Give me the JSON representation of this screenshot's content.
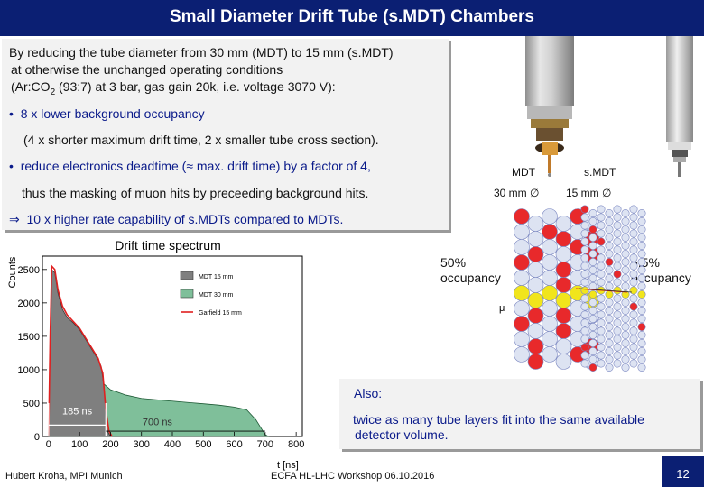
{
  "header": {
    "title": "Small Diameter Drift Tube (s.MDT) Chambers"
  },
  "intro": {
    "line1": "By reducing the tube diameter from 30 mm (MDT) to 15 mm (s.MDT)",
    "line2": "at otherwise the unchanged operating conditions",
    "line3_pre": "(Ar:CO",
    "line3_sub": "2",
    "line3_post": " (93:7) at 3 bar, gas gain 20k, i.e. voltage 3070 V):"
  },
  "bullets": [
    {
      "symbol": "•",
      "text": "8 x lower background occupancy",
      "detail": "(4 x shorter maximum drift time, 2 x smaller tube cross section)."
    },
    {
      "symbol": "•",
      "text": "reduce electronics deadtime (≈ max. drift time) by a factor of 4,",
      "detail": "thus the masking of muon hits by preceeding background hits."
    }
  ],
  "conclusion": {
    "symbol": "⇒",
    "text": "10 x higher rate capability of s.MDTs compared to MDTs."
  },
  "diagram": {
    "left_title": "MDT",
    "left_size": "30 mm ∅",
    "right_title": "s.MDT",
    "right_size": "15 mm ∅",
    "left_occupancy": "50%",
    "right_occupancy": "6.5%",
    "occupancy_word": "occupancy",
    "muon_label": "μ"
  },
  "chart_data": {
    "type": "area",
    "title": "Drift time spectrum",
    "xlabel": "t [ns]",
    "ylabel": "Counts",
    "xlim": [
      -20,
      820
    ],
    "ylim": [
      0,
      2700
    ],
    "x_ticks": [
      0,
      100,
      200,
      300,
      400,
      500,
      600,
      700,
      800
    ],
    "y_ticks": [
      0,
      500,
      1000,
      1500,
      2000,
      2500
    ],
    "legend_position": "top-right",
    "series": [
      {
        "name": "MDT 15 mm",
        "color": "#7f7f7f",
        "x": [
          0,
          5,
          10,
          20,
          30,
          45,
          60,
          80,
          100,
          120,
          140,
          160,
          170,
          180,
          185,
          190,
          200
        ],
        "y": [
          0,
          1400,
          2500,
          2450,
          2150,
          1900,
          1780,
          1700,
          1600,
          1450,
          1300,
          1150,
          1050,
          700,
          300,
          80,
          0
        ]
      },
      {
        "name": "MDT 30 mm",
        "color": "#7fbf9a",
        "x": [
          0,
          5,
          10,
          20,
          30,
          45,
          60,
          80,
          100,
          120,
          140,
          160,
          180,
          200,
          250,
          300,
          350,
          400,
          450,
          500,
          550,
          600,
          640,
          670,
          690,
          700,
          710
        ],
        "y": [
          0,
          1300,
          2350,
          2300,
          2000,
          1750,
          1600,
          1450,
          1300,
          1150,
          1000,
          880,
          780,
          700,
          620,
          570,
          550,
          530,
          510,
          490,
          470,
          440,
          400,
          250,
          100,
          30,
          0
        ]
      },
      {
        "name": "Garfield 15 mm",
        "color": "#e02020",
        "x": [
          0,
          5,
          10,
          20,
          30,
          45,
          60,
          80,
          100,
          120,
          140,
          160,
          175,
          185,
          195,
          205
        ],
        "y": [
          0,
          1500,
          2550,
          2500,
          2200,
          1950,
          1820,
          1720,
          1620,
          1470,
          1320,
          1170,
          950,
          400,
          80,
          0
        ]
      }
    ],
    "annotations": [
      "185 ns",
      "700 ns"
    ]
  },
  "also": {
    "heading": "Also:",
    "line1": "twice as many tube layers fit into the same available",
    "line2": "detector volume."
  },
  "footer": {
    "author": "Hubert Kroha, MPI Munich",
    "event": "ECFA HL-LHC Workshop  06.10.2016",
    "page": "12"
  },
  "colors": {
    "title_bar": "#0b1f73",
    "accent_blue": "#0a1a8a",
    "hit_red": "#e8292b",
    "hit_yellow": "#f1e51c",
    "tube_fill": "#dde3f2",
    "tube_stroke": "#7a86c0"
  }
}
